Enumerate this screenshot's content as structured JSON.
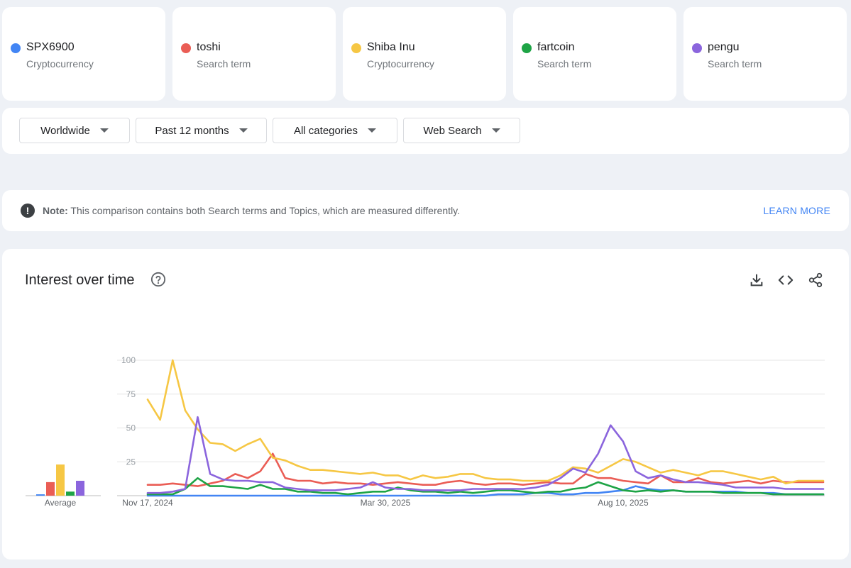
{
  "terms": [
    {
      "name": "SPX6900",
      "type": "Cryptocurrency",
      "color": "#4285f4"
    },
    {
      "name": "toshi",
      "type": "Search term",
      "color": "#ea5d55"
    },
    {
      "name": "Shiba Inu",
      "type": "Cryptocurrency",
      "color": "#f6c744"
    },
    {
      "name": "fartcoin",
      "type": "Search term",
      "color": "#1ea446"
    },
    {
      "name": "pengu",
      "type": "Search term",
      "color": "#8b65dd"
    }
  ],
  "filters": {
    "region": "Worldwide",
    "time": "Past 12 months",
    "category": "All categories",
    "source": "Web Search"
  },
  "note": {
    "label": "Note:",
    "text": "This comparison contains both Search terms and Topics, which are measured differently.",
    "link": "LEARN MORE"
  },
  "chart": {
    "title": "Interest over time",
    "average_label": "Average"
  },
  "chart_data": {
    "type": "line",
    "title": "Interest over time",
    "ylim": [
      0,
      100
    ],
    "y_ticks": [
      25,
      50,
      75,
      100
    ],
    "x_tick_labels": [
      "Nov 17, 2024",
      "Mar 30, 2025",
      "Aug 10, 2025"
    ],
    "x_tick_index": [
      0,
      19,
      38
    ],
    "averages": [
      1,
      10,
      23,
      3,
      11
    ],
    "series": [
      {
        "name": "SPX6900",
        "color": "#4285f4",
        "values": [
          0,
          0,
          0,
          0,
          0,
          0,
          0,
          0,
          0,
          0,
          0,
          0,
          0,
          0,
          0,
          0,
          0,
          0,
          0,
          0,
          0,
          0,
          0,
          0,
          0,
          0,
          0,
          0,
          1,
          1,
          1,
          2,
          2,
          1,
          1,
          2,
          2,
          3,
          4,
          7,
          5,
          4,
          4,
          3,
          3,
          3,
          3,
          3,
          2,
          2,
          2,
          1,
          1,
          1,
          1
        ]
      },
      {
        "name": "toshi",
        "color": "#ea5d55",
        "values": [
          8,
          8,
          9,
          8,
          7,
          9,
          11,
          16,
          13,
          18,
          31,
          13,
          11,
          11,
          9,
          10,
          9,
          9,
          8,
          9,
          10,
          9,
          8,
          8,
          10,
          11,
          9,
          8,
          9,
          9,
          8,
          9,
          10,
          9,
          9,
          16,
          13,
          13,
          11,
          10,
          9,
          15,
          10,
          10,
          13,
          10,
          9,
          10,
          11,
          9,
          11,
          10,
          10,
          10,
          10
        ]
      },
      {
        "name": "Shiba Inu",
        "color": "#f6c744",
        "values": [
          71,
          56,
          100,
          63,
          49,
          39,
          38,
          33,
          38,
          42,
          28,
          26,
          22,
          19,
          19,
          18,
          17,
          16,
          17,
          15,
          15,
          12,
          15,
          13,
          14,
          16,
          16,
          13,
          12,
          12,
          11,
          11,
          11,
          15,
          21,
          20,
          17,
          22,
          27,
          25,
          21,
          17,
          19,
          17,
          15,
          18,
          18,
          16,
          14,
          12,
          14,
          9,
          11,
          11,
          11
        ]
      },
      {
        "name": "fartcoin",
        "color": "#1ea446",
        "values": [
          1,
          1,
          1,
          5,
          13,
          7,
          7,
          6,
          5,
          8,
          5,
          5,
          3,
          3,
          2,
          2,
          1,
          2,
          3,
          3,
          6,
          4,
          3,
          3,
          2,
          3,
          2,
          3,
          4,
          4,
          3,
          2,
          3,
          3,
          5,
          6,
          10,
          7,
          4,
          3,
          4,
          3,
          4,
          3,
          3,
          3,
          2,
          2,
          2,
          2,
          1,
          1,
          1,
          1,
          1
        ]
      },
      {
        "name": "pengu",
        "color": "#8b65dd",
        "values": [
          2,
          2,
          3,
          5,
          58,
          16,
          12,
          11,
          11,
          10,
          10,
          6,
          5,
          4,
          4,
          4,
          5,
          6,
          10,
          6,
          5,
          5,
          4,
          4,
          4,
          4,
          5,
          5,
          5,
          5,
          5,
          6,
          8,
          13,
          20,
          17,
          31,
          52,
          40,
          18,
          13,
          15,
          12,
          10,
          10,
          9,
          8,
          6,
          6,
          6,
          6,
          5,
          5,
          5,
          5
        ]
      }
    ]
  }
}
